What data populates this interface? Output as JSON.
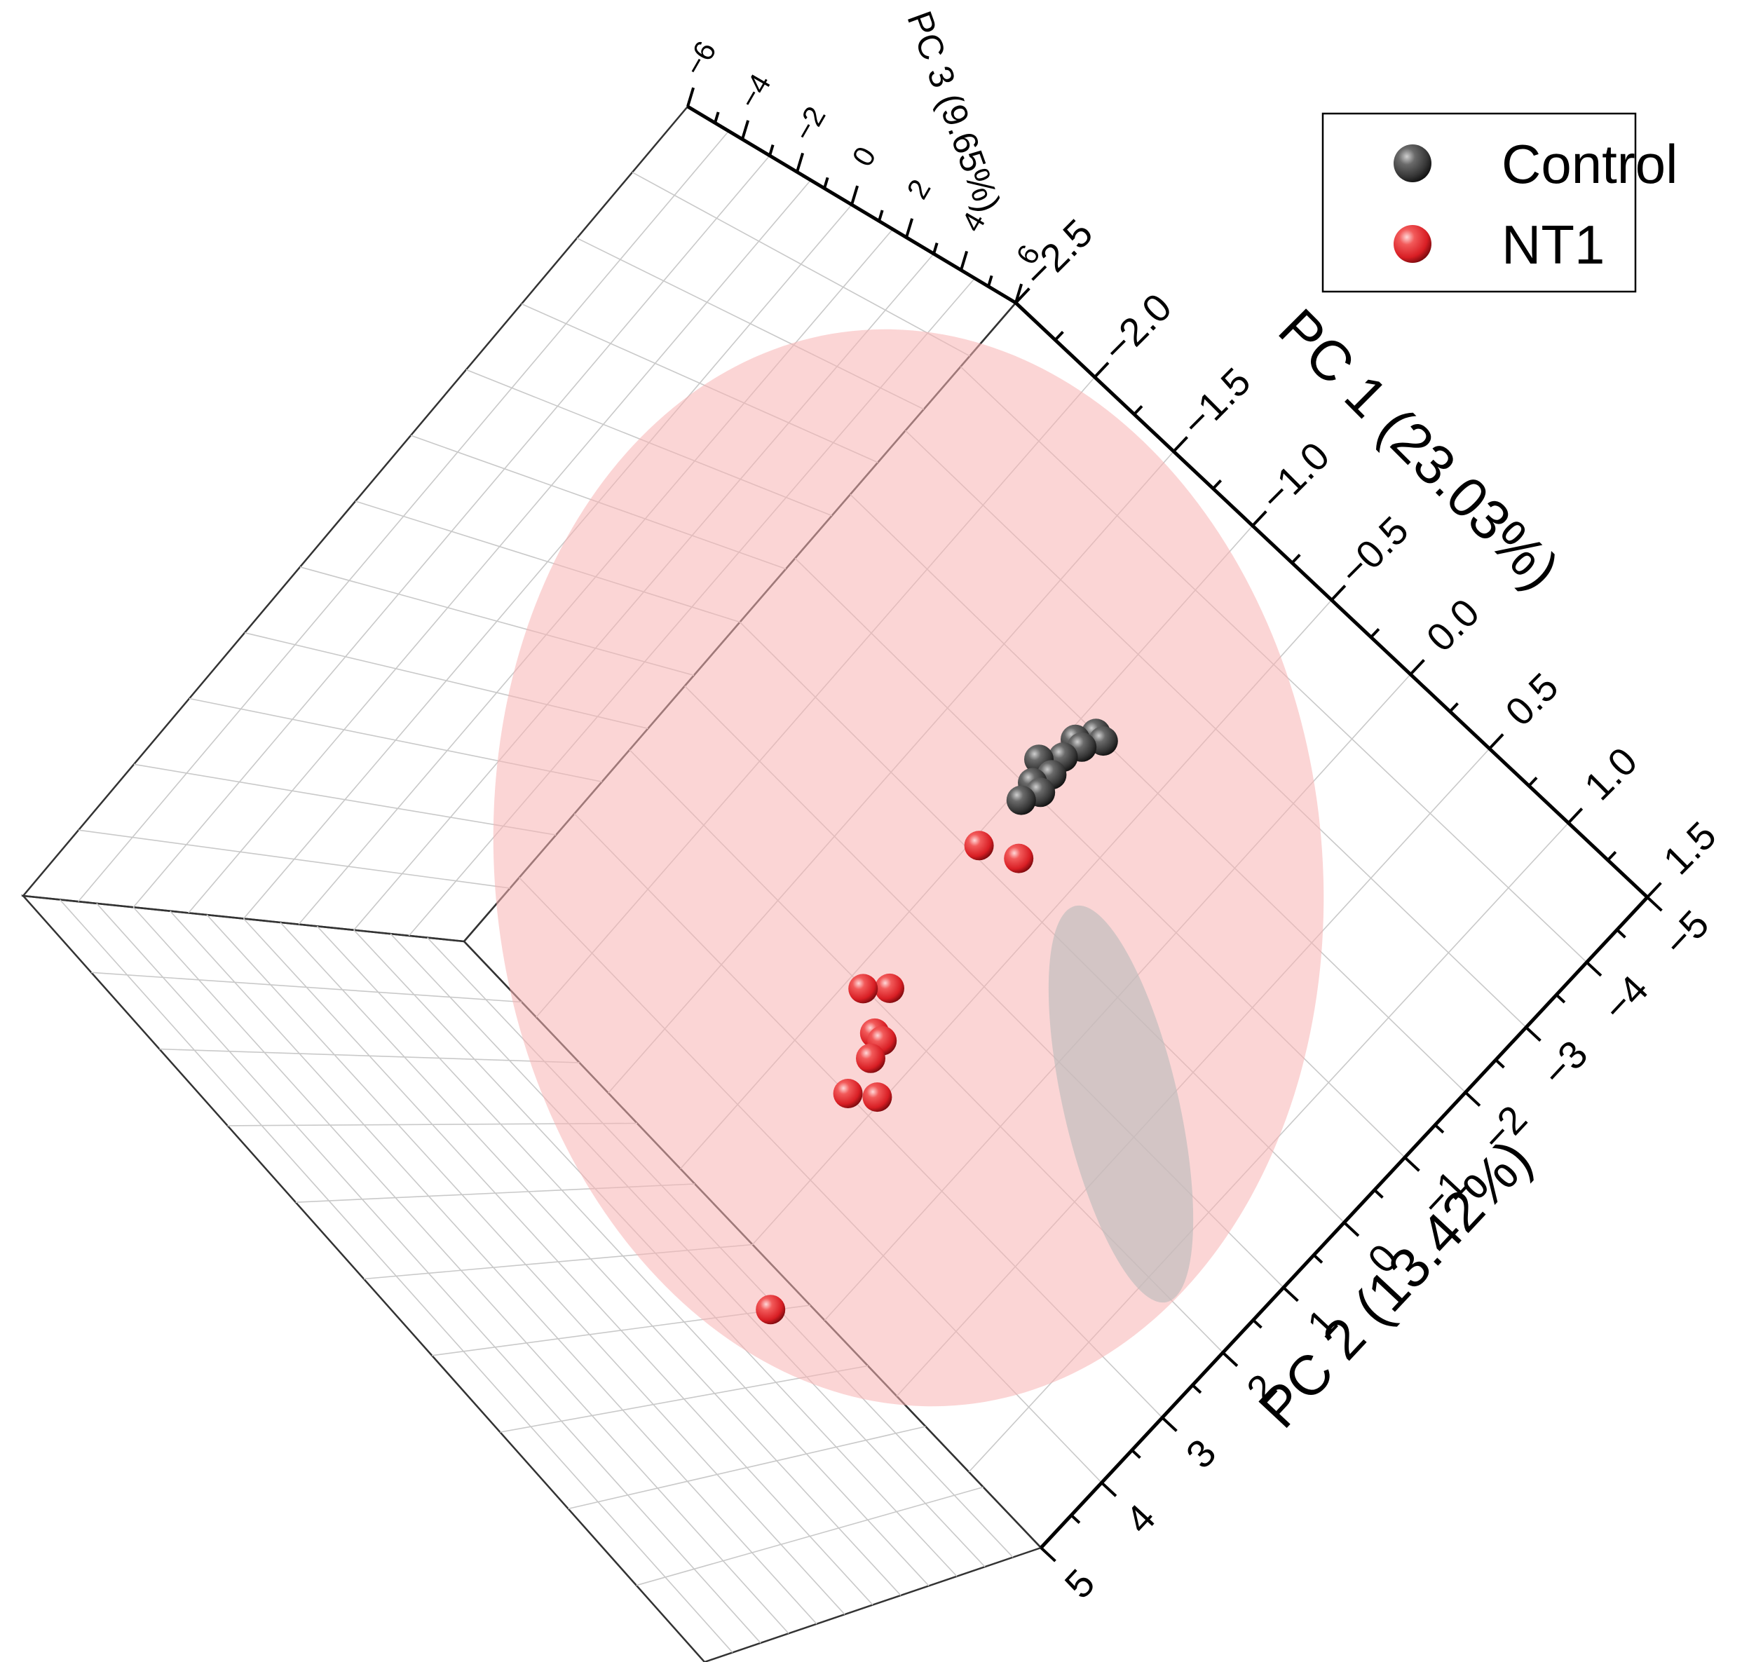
{
  "chart_data": {
    "type": "scatter",
    "projection": "3d",
    "axes": {
      "pc1": {
        "label": "PC 1 (23.03%)",
        "ticks": [
          "−2.5",
          "−2.0",
          "−1.5",
          "−1.0",
          "−0.5",
          "0.0",
          "0.5",
          "1.0",
          "1.5"
        ],
        "range": [
          -2.5,
          1.5
        ]
      },
      "pc2": {
        "label": "PC 2 (13.42%)",
        "ticks": [
          "−5",
          "−4",
          "−3",
          "−2",
          "−1",
          "0",
          "1",
          "2",
          "3",
          "4",
          "5"
        ],
        "range": [
          -5,
          5
        ]
      },
      "pc3": {
        "label": "PC 3 (9.65%)",
        "ticks": [
          "−6",
          "−4",
          "−2",
          "0",
          "2",
          "4",
          "6"
        ],
        "range": [
          -6,
          6
        ]
      }
    },
    "legend": {
      "placement": "top-right",
      "entries": [
        {
          "name": "Control",
          "color": "#3a3a3a"
        },
        {
          "name": "NT1",
          "color": "#e8242a"
        }
      ]
    },
    "series": [
      {
        "name": "NT1",
        "color": "#e8242a",
        "ellipse_color": "#f7b3b3",
        "points": [
          {
            "pc1": -1.6,
            "pc2": -2.4,
            "pc3": -1.5
          },
          {
            "pc1": -0.6,
            "pc2": -2.2,
            "pc3": -0.8
          },
          {
            "pc1": -0.5,
            "pc2": -1.8,
            "pc3": -0.9
          },
          {
            "pc1": -0.4,
            "pc2": -2.0,
            "pc3": -0.6
          },
          {
            "pc1": -0.3,
            "pc2": -2.1,
            "pc3": -0.7
          },
          {
            "pc1": -0.3,
            "pc2": -1.9,
            "pc3": -0.5
          },
          {
            "pc1": -0.2,
            "pc2": -2.4,
            "pc3": -0.4
          },
          {
            "pc1": -0.1,
            "pc2": -2.0,
            "pc3": -0.3
          },
          {
            "pc1": 0.7,
            "pc2": -1.2,
            "pc3": 0.6
          },
          {
            "pc1": 0.8,
            "pc2": -0.4,
            "pc3": 1.2
          }
        ]
      },
      {
        "name": "Control",
        "color": "#3a3a3a",
        "ellipse_color": "#bdbdbd",
        "points": [
          {
            "pc1": 1.0,
            "pc2": -0.6,
            "pc3": 1.4
          },
          {
            "pc1": 1.1,
            "pc2": -0.5,
            "pc3": 1.5
          },
          {
            "pc1": 1.1,
            "pc2": -0.4,
            "pc3": 1.3
          },
          {
            "pc1": 1.2,
            "pc2": -0.5,
            "pc3": 1.6
          },
          {
            "pc1": 1.2,
            "pc2": -0.3,
            "pc3": 1.4
          },
          {
            "pc1": 1.3,
            "pc2": -0.2,
            "pc3": 1.5
          },
          {
            "pc1": 1.4,
            "pc2": 0.1,
            "pc3": 1.8
          },
          {
            "pc1": 1.4,
            "pc2": 0.0,
            "pc3": 1.9
          },
          {
            "pc1": 1.5,
            "pc2": 0.2,
            "pc3": 1.7
          },
          {
            "pc1": 1.5,
            "pc2": 0.4,
            "pc3": 1.9
          }
        ]
      }
    ]
  }
}
